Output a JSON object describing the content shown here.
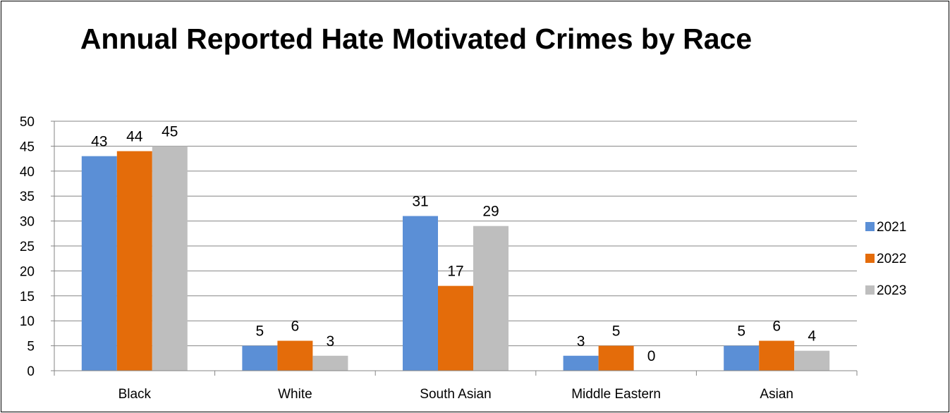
{
  "chart_data": {
    "type": "bar",
    "title": "Annual Reported Hate Motivated Crimes by Race",
    "xlabel": "",
    "ylabel": "",
    "categories": [
      "Black",
      "White",
      "South Asian",
      "Middle Eastern",
      "Asian"
    ],
    "series": [
      {
        "name": "2021",
        "values": [
          43,
          5,
          31,
          3,
          5
        ],
        "color": "#5B8FD6"
      },
      {
        "name": "2022",
        "values": [
          44,
          6,
          17,
          5,
          6
        ],
        "color": "#E46C0A"
      },
      {
        "name": "2023",
        "values": [
          45,
          3,
          29,
          0,
          4
        ],
        "color": "#BEBEBE"
      }
    ],
    "ylim": [
      0,
      50
    ],
    "y_ticks": [
      "0",
      "5",
      "10",
      "15",
      "20",
      "25",
      "30",
      "35",
      "40",
      "45",
      "50"
    ],
    "grid": true,
    "data_labels": true,
    "legend_position": "right"
  }
}
